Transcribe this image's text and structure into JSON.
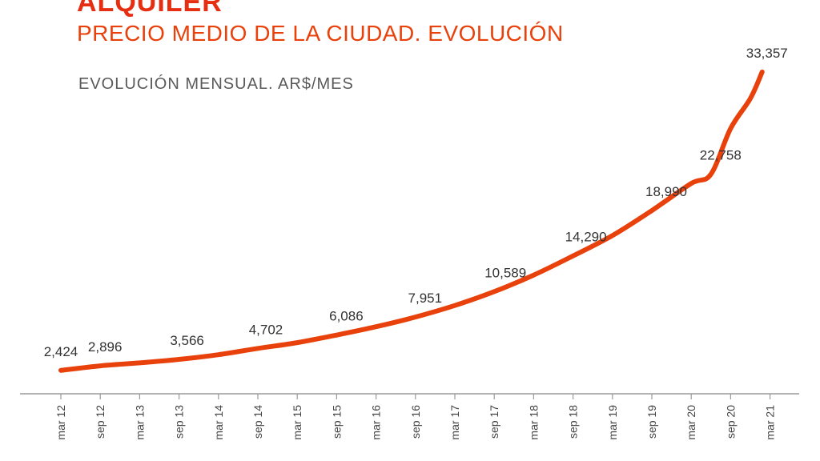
{
  "title": "ALQUILER",
  "subtitle": "PRECIO MEDIO DE LA CIUDAD. EVOLUCIÓN",
  "caption": "EVOLUCIÓN MENSUAL. AR$/MES",
  "colors": {
    "accent": "#e8410c",
    "title_red": "#e62e12",
    "axis": "#9a9a9a",
    "text": "#333333",
    "caption": "#5a5a5a"
  },
  "chart_data": {
    "type": "line",
    "title": "ALQUILER",
    "subtitle": "PRECIO MEDIO DE LA CIUDAD. EVOLUCIÓN",
    "ylabel": "EVOLUCIÓN MENSUAL. AR$/MES",
    "xlabel": "",
    "categories": [
      "mar 12",
      "sep 12",
      "mar 13",
      "sep 13",
      "mar 14",
      "sep 14",
      "mar 15",
      "sep 15",
      "mar 16",
      "sep 16",
      "mar 17",
      "sep 17",
      "mar 18",
      "sep 18",
      "mar 19",
      "sep 19",
      "mar 20",
      "sep 20",
      "mar 21"
    ],
    "series": [
      {
        "values": [
          2424,
          2896,
          3566,
          4702,
          6086,
          7951,
          10589,
          14290,
          18990,
          22758,
          33357
        ],
        "x": [
          0,
          1,
          3,
          5,
          7,
          9,
          11,
          13,
          15,
          16.5,
          17.8
        ],
        "labels": [
          "2,424",
          "2,896",
          "3,566",
          "4,702",
          "6,086",
          "7,951",
          "10,589",
          "14,290",
          "18,990",
          "22,758",
          "33,357"
        ],
        "curve": [
          [
            0,
            2424
          ],
          [
            1,
            2896
          ],
          [
            2,
            3200
          ],
          [
            3,
            3566
          ],
          [
            4,
            4050
          ],
          [
            5,
            4702
          ],
          [
            6,
            5300
          ],
          [
            7,
            6086
          ],
          [
            8,
            6950
          ],
          [
            9,
            7951
          ],
          [
            10,
            9150
          ],
          [
            11,
            10589
          ],
          [
            12,
            12300
          ],
          [
            13,
            14290
          ],
          [
            14,
            16400
          ],
          [
            15,
            18990
          ],
          [
            16,
            21800
          ],
          [
            16.5,
            22758
          ],
          [
            17,
            27500
          ],
          [
            17.5,
            30600
          ],
          [
            17.8,
            33357
          ]
        ]
      }
    ],
    "ylim": [
      0,
      36000
    ],
    "grid": false,
    "legend": "none"
  }
}
